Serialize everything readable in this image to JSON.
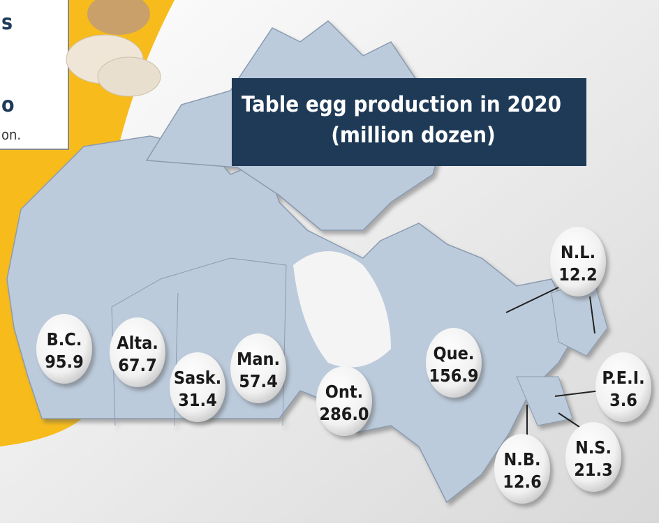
{
  "title": {
    "line1": "Table egg production in 2020",
    "line2": "(million dozen)"
  },
  "side_panel": {
    "fragments": [
      "s",
      "o",
      "on."
    ]
  },
  "regions": [
    {
      "label": "B.C.",
      "value": "95.9"
    },
    {
      "label": "Alta.",
      "value": "67.7"
    },
    {
      "label": "Sask.",
      "value": "31.4"
    },
    {
      "label": "Man.",
      "value": "57.4"
    },
    {
      "label": "Ont.",
      "value": "286.0"
    },
    {
      "label": "Que.",
      "value": "156.9"
    },
    {
      "label": "N.L.",
      "value": "12.2"
    },
    {
      "label": "P.E.I.",
      "value": "3.6"
    },
    {
      "label": "N.S.",
      "value": "21.3"
    },
    {
      "label": "N.B.",
      "value": "12.6"
    }
  ]
}
